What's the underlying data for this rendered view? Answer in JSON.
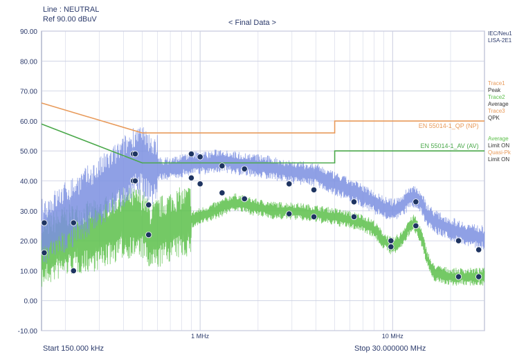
{
  "header": {
    "line": "Line : NEUTRAL",
    "ref": "Ref   90.00 dBuV",
    "final_data": "< Final Data >"
  },
  "footer": {
    "start": "Start      150.000 kHz",
    "stop": "Stop      30.000000 MHz"
  },
  "side_legend": {
    "std1": "IEC/Neu1",
    "std2": "LISA-2E1",
    "trace1_label": "Trace1",
    "trace1_value": "Peak",
    "trace2_label": "Trace2",
    "trace2_value": "Average",
    "trace3_label": "Trace3",
    "trace3_value": "QPK",
    "avg_label": "Average",
    "avg_value": "Limit ON",
    "qpk_label": "Quasi-Pk",
    "qpk_value": "Limit ON"
  },
  "colors": {
    "peak": "#7b8fe0",
    "average": "#5cbf4a",
    "qp_limit": "#e89a5a",
    "av_limit": "#4aa84a",
    "marker": "#1e3461",
    "grid": "#c9cde0",
    "frame": "#8a90b0"
  },
  "chart_data": {
    "type": "line",
    "title": "< Final Data >",
    "x_scale": "log",
    "xlim_MHz": [
      0.15,
      30
    ],
    "ylim": [
      -10,
      90
    ],
    "ylabel_unit": "dBuV",
    "grid": true,
    "y_ticks": [
      "90.00",
      "80.00",
      "70.00",
      "60.00",
      "50.00",
      "40.00",
      "30.00",
      "20.00",
      "10.00",
      "0.00",
      "-10.00"
    ],
    "x_tick_labels": [
      {
        "value": 1,
        "label": "1 MHz"
      },
      {
        "value": 10,
        "label": "10 MHz"
      }
    ],
    "limits": [
      {
        "name": "EN 55014-1_QP (NP)",
        "color": "#e89a5a",
        "points": [
          [
            0.15,
            66
          ],
          [
            0.5,
            56
          ],
          [
            5,
            56
          ],
          [
            5,
            60
          ],
          [
            30,
            60
          ]
        ]
      },
      {
        "name": "EN 55014-1_AV (AV)",
        "color": "#4aa84a",
        "points": [
          [
            0.15,
            59
          ],
          [
            0.5,
            46
          ],
          [
            5,
            46
          ],
          [
            5,
            50
          ],
          [
            30,
            50
          ]
        ]
      }
    ],
    "series": [
      {
        "name": "Peak",
        "x": [
          0.15,
          0.2,
          0.3,
          0.4,
          0.47,
          0.55,
          0.7,
          0.9,
          1.1,
          1.3,
          1.5,
          2.0,
          2.5,
          3.0,
          4.0,
          5.0,
          6.0,
          7.0,
          8.0,
          9.0,
          10.0,
          11.0,
          12.0,
          13.0,
          14.0,
          15.0,
          17.0,
          20.0,
          25.0,
          30.0
        ],
        "y": [
          22,
          28,
          36,
          43,
          48,
          44,
          44,
          46,
          46,
          47,
          46,
          45,
          44,
          43,
          42,
          39,
          37,
          35,
          33,
          31,
          30,
          31,
          34,
          35,
          33,
          29,
          26,
          24,
          22,
          21
        ]
      },
      {
        "name": "Average",
        "x": [
          0.15,
          0.2,
          0.3,
          0.4,
          0.5,
          0.55,
          0.7,
          0.9,
          1.2,
          1.5,
          2.0,
          2.5,
          3.0,
          4.0,
          5.0,
          6.0,
          7.0,
          8.0,
          9.0,
          10.0,
          11.0,
          12.0,
          13.0,
          14.0,
          15.0,
          16.0,
          17.0,
          20.0,
          25.0,
          30.0
        ],
        "y": [
          16,
          20,
          22,
          26,
          26,
          21,
          25,
          27,
          30,
          33,
          31,
          30,
          30,
          29,
          28,
          27,
          26,
          24,
          20,
          18,
          20,
          24,
          26,
          22,
          15,
          10,
          9,
          8,
          8,
          8
        ]
      }
    ],
    "markers_peak": [
      [
        0.155,
        26
      ],
      [
        0.22,
        26
      ],
      [
        0.45,
        49
      ],
      [
        0.46,
        49
      ],
      [
        0.54,
        32
      ],
      [
        0.9,
        49
      ],
      [
        1.0,
        48
      ],
      [
        1.3,
        45
      ],
      [
        1.7,
        44
      ],
      [
        2.9,
        39
      ],
      [
        3.9,
        37
      ],
      [
        6.3,
        33
      ],
      [
        9.8,
        20
      ],
      [
        13.2,
        33
      ],
      [
        22.0,
        20
      ],
      [
        28.0,
        17
      ]
    ],
    "markers_av": [
      [
        0.155,
        16
      ],
      [
        0.22,
        10
      ],
      [
        0.45,
        40
      ],
      [
        0.46,
        40
      ],
      [
        0.54,
        22
      ],
      [
        0.9,
        41
      ],
      [
        1.0,
        39
      ],
      [
        1.3,
        36
      ],
      [
        1.7,
        34
      ],
      [
        2.9,
        29
      ],
      [
        3.9,
        28
      ],
      [
        6.3,
        28
      ],
      [
        9.8,
        18
      ],
      [
        13.2,
        25
      ],
      [
        22.0,
        8
      ],
      [
        28.0,
        8
      ]
    ]
  }
}
